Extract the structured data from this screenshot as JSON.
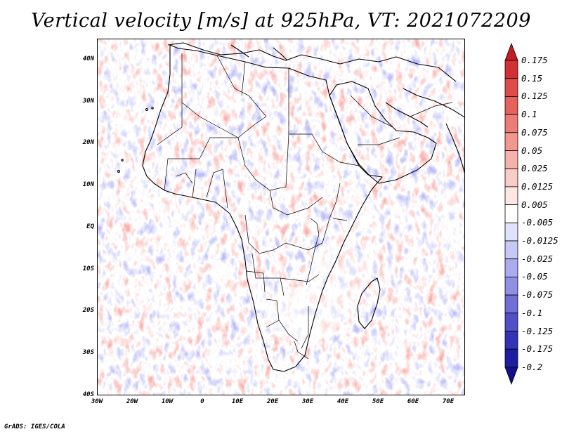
{
  "title": "Vertical velocity [m/s] at 925hPa, VT: 2021072209",
  "footer": "GrADS: IGES/COLA",
  "map": {
    "lon_range": [
      -30,
      75
    ],
    "lat_range": [
      -40,
      45
    ],
    "lat_labels": [
      "40N",
      "30N",
      "20N",
      "10N",
      "EQ",
      "10S",
      "20S",
      "30S",
      "40S"
    ],
    "lon_labels": [
      "30W",
      "20W",
      "10W",
      "0",
      "10E",
      "20E",
      "30E",
      "40E",
      "50E",
      "60E",
      "70E"
    ]
  },
  "colorbar": {
    "levels": [
      "0.175",
      "0.15",
      "0.125",
      "0.1",
      "0.075",
      "0.05",
      "0.025",
      "0.0125",
      "0.005",
      "-0.005",
      "-0.0125",
      "-0.025",
      "-0.05",
      "-0.075",
      "-0.1",
      "-0.125",
      "-0.175",
      "-0.2"
    ],
    "colors": [
      "#c21d25",
      "#d33035",
      "#e04c4a",
      "#e7615d",
      "#ee7c76",
      "#f2978f",
      "#f6b3ab",
      "#f9ccc6",
      "#fde6e3",
      "#ffffff",
      "#e1e2fb",
      "#c7c8f6",
      "#abaced",
      "#8f8fe4",
      "#6f6fd7",
      "#5050c9",
      "#3333b8",
      "#1e1ea0",
      "#111188"
    ]
  }
}
